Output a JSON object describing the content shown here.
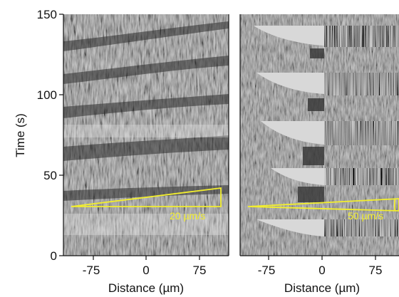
{
  "figure": {
    "ylabel": "Time (s)",
    "y_ticks": [
      "0",
      "50",
      "100",
      "150"
    ],
    "panels": [
      {
        "id": "left",
        "xlabel": "Distance (µm)",
        "x_ticks": [
          "-75",
          "0",
          "75"
        ],
        "velocity_label": "20 µm/s"
      },
      {
        "id": "right",
        "xlabel": "Distance (µm)",
        "x_ticks": [
          "-75",
          "0",
          "75"
        ],
        "velocity_label": "50 µm/s"
      }
    ],
    "colors": {
      "annotation": "#f2ee2e",
      "axis": "#111111"
    }
  }
}
